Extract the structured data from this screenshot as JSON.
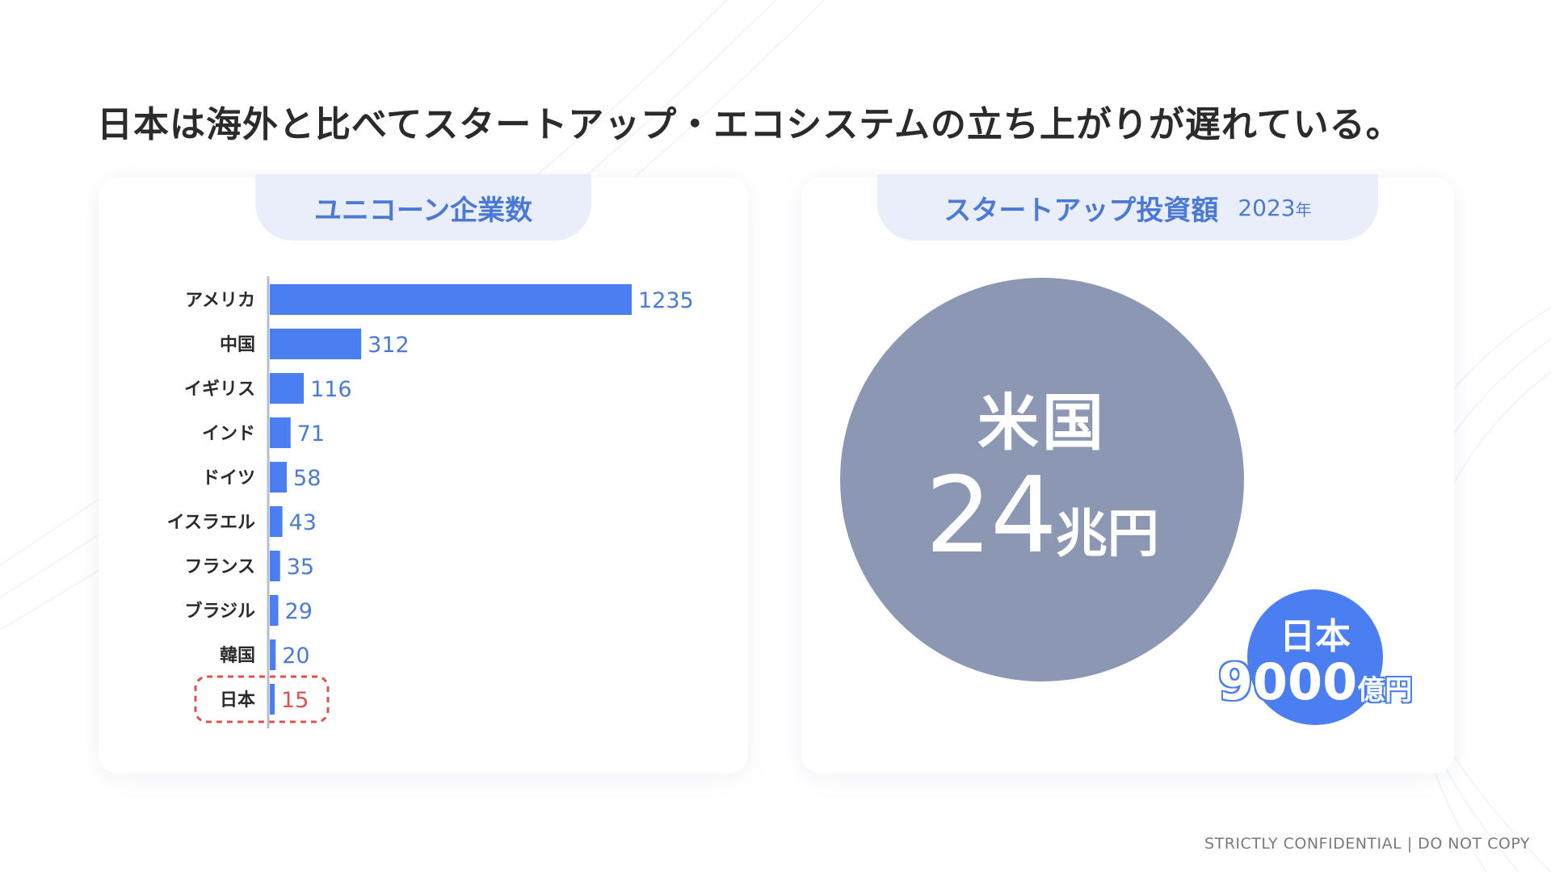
{
  "title": "日本は海外と比べてスタートアップ・エコシステムの立ち上がりが遅れている。",
  "left_panel": {
    "tab_title": "ユニコーン企業数"
  },
  "right_panel": {
    "tab_title": "スタートアップ投資額",
    "year": "2023",
    "year_suffix": "年",
    "us_label": "米国",
    "us_amount": "24",
    "us_unit": "兆円",
    "jp_label": "日本",
    "jp_amount": "9000",
    "jp_unit": "億円"
  },
  "footer": "STRICTLY CONFIDENTIAL | DO NOT COPY",
  "colors": {
    "bar": "#4b7ef0",
    "highlight": "#d9534f",
    "us_circle": "#8c97b3",
    "jp_circle": "#4b7ef0"
  },
  "chart_data": {
    "type": "bar",
    "orientation": "horizontal",
    "categories": [
      "アメリカ",
      "中国",
      "イギリス",
      "インド",
      "ドイツ",
      "イスラエル",
      "フランス",
      "ブラジル",
      "韓国",
      "日本"
    ],
    "values": [
      1235,
      312,
      116,
      71,
      58,
      43,
      35,
      29,
      20,
      15
    ],
    "highlight": "日本",
    "title": "ユニコーン企業数"
  }
}
